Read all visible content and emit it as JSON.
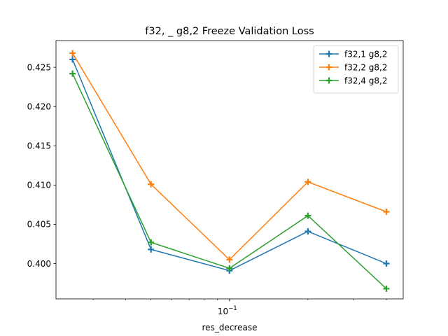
{
  "chart_data": {
    "type": "line",
    "title": "f32, _ g8,2 Freeze Validation Loss",
    "xlabel": "res_decrease",
    "ylabel": "",
    "xscale": "log",
    "x": [
      0.025,
      0.05,
      0.1,
      0.2,
      0.4
    ],
    "xlim": [
      0.0216,
      0.464
    ],
    "ylim": [
      0.3955,
      0.4284
    ],
    "y_ticks": [
      0.4,
      0.405,
      0.41,
      0.415,
      0.42,
      0.425
    ],
    "y_tick_labels": [
      "0.400",
      "0.405",
      "0.410",
      "0.415",
      "0.420",
      "0.425"
    ],
    "x_major_tick_label_base": "10",
    "x_major_tick_label_exp": "−1",
    "grid": false,
    "legend_position": "top-right",
    "marker": "plus",
    "series": [
      {
        "name": "f32,1 g8,2",
        "color": "#1f77b4",
        "values": [
          0.426,
          0.4018,
          0.3991,
          0.4041,
          0.4
        ]
      },
      {
        "name": "f32,2 g8,2",
        "color": "#ff7f0e",
        "values": [
          0.4268,
          0.4101,
          0.4005,
          0.4104,
          0.4066
        ]
      },
      {
        "name": "f32,4 g8,2",
        "color": "#2ca02c",
        "values": [
          0.4242,
          0.4027,
          0.3994,
          0.4061,
          0.3968
        ]
      }
    ]
  }
}
